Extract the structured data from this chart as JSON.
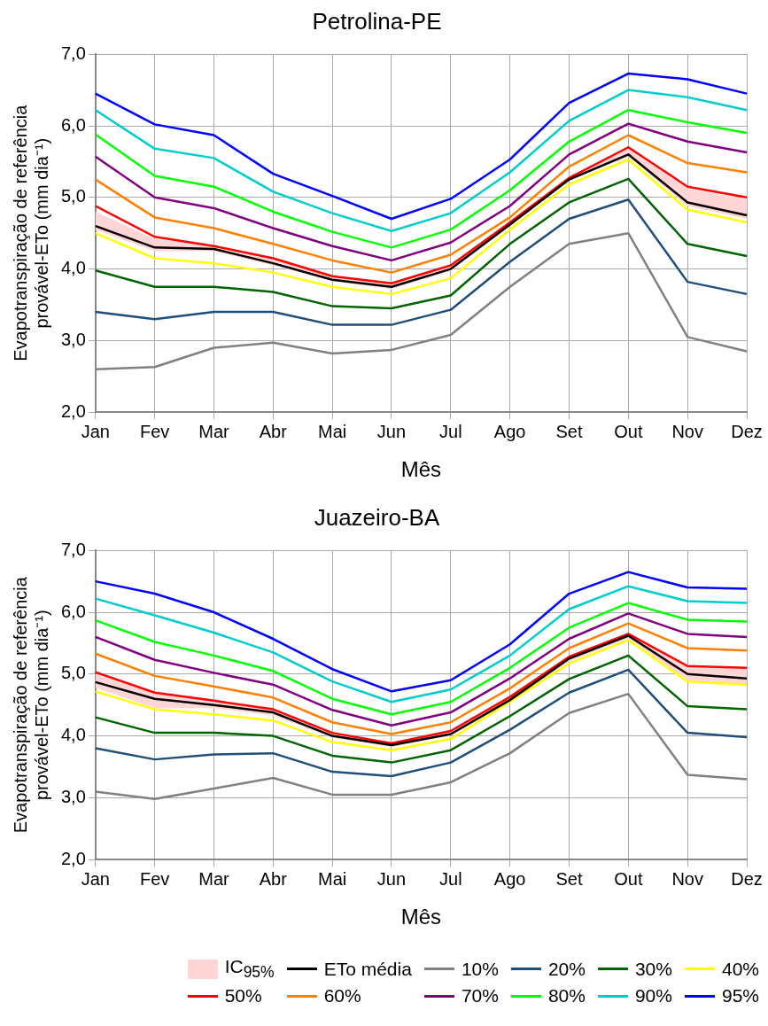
{
  "chart_data": [
    {
      "type": "line",
      "title": "Petrolina-PE",
      "xlabel": "Mês",
      "ylabel": "Evapotranspiração de referência\nprovável-ETo (mm dia⁻¹)",
      "categories": [
        "Jan",
        "Fev",
        "Mar",
        "Abr",
        "Mai",
        "Jun",
        "Jul",
        "Ago",
        "Set",
        "Out",
        "Nov",
        "Dez"
      ],
      "ylim": [
        2,
        7
      ],
      "yticks": [
        {
          "value": 2,
          "label": "2,0"
        },
        {
          "value": 3,
          "label": "3,0"
        },
        {
          "value": 4,
          "label": "4,0"
        },
        {
          "value": 5,
          "label": "5,0"
        },
        {
          "value": 6,
          "label": "6,0"
        },
        {
          "value": 7,
          "label": "7,0"
        }
      ],
      "grid": true,
      "marker": "none",
      "series": [
        {
          "color": "#000000",
          "values": [
            4.6,
            4.3,
            4.28,
            4.08,
            3.85,
            3.75,
            4.0,
            4.62,
            5.25,
            5.6,
            4.93,
            4.75
          ],
          "lower": [
            4.55,
            4.25,
            4.25,
            4.05,
            3.83,
            3.72,
            3.97,
            4.6,
            5.23,
            5.57,
            4.88,
            4.7
          ],
          "upper": [
            4.8,
            4.42,
            4.33,
            4.15,
            3.9,
            3.8,
            4.05,
            4.67,
            5.3,
            5.68,
            5.12,
            4.98
          ]
        },
        {
          "color": "#808080",
          "values": [
            2.6,
            2.63,
            2.9,
            2.97,
            2.82,
            2.87,
            3.08,
            3.75,
            4.35,
            4.5,
            3.05,
            2.85
          ]
        },
        {
          "color": "#1f4e79",
          "values": [
            3.4,
            3.3,
            3.4,
            3.4,
            3.22,
            3.22,
            3.43,
            4.1,
            4.7,
            4.97,
            3.82,
            3.65
          ]
        },
        {
          "color": "#006400",
          "values": [
            3.98,
            3.75,
            3.75,
            3.68,
            3.48,
            3.45,
            3.63,
            4.35,
            4.93,
            5.26,
            4.35,
            4.18
          ]
        },
        {
          "color": "#ffff00",
          "values": [
            4.5,
            4.15,
            4.08,
            3.95,
            3.75,
            3.65,
            3.87,
            4.55,
            5.18,
            5.53,
            4.83,
            4.65
          ]
        },
        {
          "color": "#ff0000",
          "values": [
            4.88,
            4.45,
            4.32,
            4.15,
            3.9,
            3.8,
            4.05,
            4.65,
            5.27,
            5.7,
            5.15,
            5.0
          ]
        },
        {
          "color": "#ff8000",
          "values": [
            5.25,
            4.72,
            4.57,
            4.35,
            4.12,
            3.95,
            4.2,
            4.72,
            5.43,
            5.87,
            5.48,
            5.35
          ]
        },
        {
          "color": "#800080",
          "values": [
            5.57,
            5.0,
            4.85,
            4.57,
            4.32,
            4.12,
            4.37,
            4.88,
            5.6,
            6.03,
            5.78,
            5.63
          ]
        },
        {
          "color": "#00ff00",
          "values": [
            5.88,
            5.3,
            5.15,
            4.8,
            4.52,
            4.3,
            4.55,
            5.1,
            5.78,
            6.22,
            6.05,
            5.9
          ]
        },
        {
          "color": "#00cccc",
          "values": [
            6.22,
            5.68,
            5.55,
            5.08,
            4.78,
            4.53,
            4.78,
            5.35,
            6.07,
            6.5,
            6.4,
            6.22
          ]
        },
        {
          "color": "#0000ff",
          "values": [
            6.45,
            6.02,
            5.87,
            5.33,
            5.02,
            4.7,
            4.98,
            5.53,
            6.32,
            6.73,
            6.65,
            6.45
          ]
        }
      ]
    },
    {
      "type": "line",
      "title": "Juazeiro-BA",
      "xlabel": "Mês",
      "ylabel": "Evapotranspiração de referência\nprovável-ETo (mm dia⁻¹)",
      "categories": [
        "Jan",
        "Fev",
        "Mar",
        "Abr",
        "Mai",
        "Jun",
        "Jul",
        "Ago",
        "Set",
        "Out",
        "Nov",
        "Dez"
      ],
      "ylim": [
        2,
        7
      ],
      "yticks": [
        {
          "value": 2,
          "label": "2,0"
        },
        {
          "value": 3,
          "label": "3,0"
        },
        {
          "value": 4,
          "label": "4,0"
        },
        {
          "value": 5,
          "label": "5,0"
        },
        {
          "value": 6,
          "label": "6,0"
        },
        {
          "value": 7,
          "label": "7,0"
        }
      ],
      "grid": true,
      "marker": "none",
      "legend": "bottom",
      "annotations": [
        "IC$_{95%}$"
      ],
      "series": [
        {
          "name": "ETo média",
          "color": "#000000",
          "values": [
            4.87,
            4.6,
            4.5,
            4.38,
            4.0,
            3.85,
            4.03,
            4.58,
            5.25,
            5.62,
            5.0,
            4.93
          ],
          "lower": [
            4.78,
            4.45,
            4.45,
            4.33,
            3.97,
            3.82,
            4.0,
            4.55,
            5.2,
            5.58,
            4.9,
            4.83
          ],
          "upper": [
            5.0,
            4.68,
            4.57,
            4.45,
            4.05,
            3.9,
            4.08,
            4.63,
            5.28,
            5.67,
            5.13,
            5.1
          ]
        },
        {
          "name": "10%",
          "color": "#808080",
          "values": [
            3.1,
            2.98,
            3.15,
            3.32,
            3.05,
            3.05,
            3.25,
            3.72,
            4.37,
            4.68,
            3.37,
            3.3
          ]
        },
        {
          "name": "20%",
          "color": "#1f4e79",
          "values": [
            3.8,
            3.62,
            3.7,
            3.72,
            3.42,
            3.35,
            3.57,
            4.1,
            4.7,
            5.07,
            4.05,
            3.98
          ]
        },
        {
          "name": "30%",
          "color": "#006400",
          "values": [
            4.3,
            4.05,
            4.05,
            4.0,
            3.68,
            3.57,
            3.77,
            4.32,
            4.92,
            5.3,
            4.48,
            4.43
          ]
        },
        {
          "name": "40%",
          "color": "#ffff00",
          "values": [
            4.72,
            4.43,
            4.35,
            4.25,
            3.9,
            3.77,
            3.95,
            4.55,
            5.17,
            5.55,
            4.88,
            4.83
          ]
        },
        {
          "name": "50%",
          "color": "#ff0000",
          "values": [
            5.03,
            4.7,
            4.57,
            4.43,
            4.05,
            3.88,
            4.08,
            4.63,
            5.28,
            5.65,
            5.13,
            5.1
          ]
        },
        {
          "name": "60%",
          "color": "#ff8000",
          "values": [
            5.33,
            4.97,
            4.8,
            4.62,
            4.22,
            4.03,
            4.22,
            4.77,
            5.42,
            5.82,
            5.42,
            5.38
          ]
        },
        {
          "name": "70%",
          "color": "#800080",
          "values": [
            5.6,
            5.23,
            5.02,
            4.83,
            4.42,
            4.17,
            4.38,
            4.93,
            5.57,
            5.98,
            5.65,
            5.6
          ]
        },
        {
          "name": "80%",
          "color": "#00ff00",
          "values": [
            5.87,
            5.52,
            5.3,
            5.05,
            4.6,
            4.35,
            4.55,
            5.1,
            5.75,
            6.15,
            5.88,
            5.85
          ]
        },
        {
          "name": "90%",
          "color": "#00cccc",
          "values": [
            6.22,
            5.95,
            5.67,
            5.35,
            4.88,
            4.55,
            4.75,
            5.3,
            6.05,
            6.42,
            6.18,
            6.15
          ]
        },
        {
          "name": "95%",
          "color": "#0000ff",
          "values": [
            6.5,
            6.3,
            6.0,
            5.57,
            5.08,
            4.72,
            4.9,
            5.48,
            6.3,
            6.65,
            6.4,
            6.38
          ]
        }
      ]
    }
  ]
}
